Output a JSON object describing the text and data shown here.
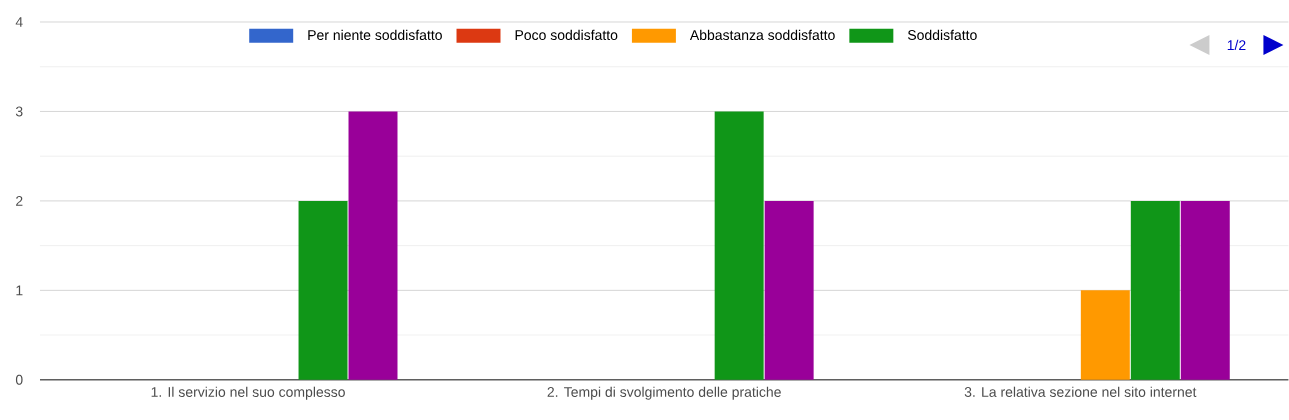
{
  "chart_data": {
    "type": "bar",
    "categories": [
      "1. Il servizio nel suo complesso",
      "2. Tempi di svolgimento delle pratiche",
      "3. La relativa sezione nel sito internet"
    ],
    "series": [
      {
        "name": "Per niente soddisfatto",
        "color": "#3366cc",
        "values": [
          0,
          0,
          0
        ]
      },
      {
        "name": "Poco soddisfatto",
        "color": "#dc3912",
        "values": [
          0,
          0,
          0
        ]
      },
      {
        "name": "Abbastanza soddisfatto",
        "color": "#ff9900",
        "values": [
          0,
          0,
          1
        ]
      },
      {
        "name": "Soddisfatto",
        "color": "#109618",
        "values": [
          2,
          3,
          2
        ]
      },
      {
        "color": "#990099",
        "values": [
          3,
          2,
          2
        ]
      }
    ],
    "ylim": [
      0,
      4
    ],
    "yticks": [
      0,
      1,
      2,
      3,
      4
    ],
    "grid": "y",
    "legend": "top",
    "annotations": [
      "1/2"
    ]
  }
}
